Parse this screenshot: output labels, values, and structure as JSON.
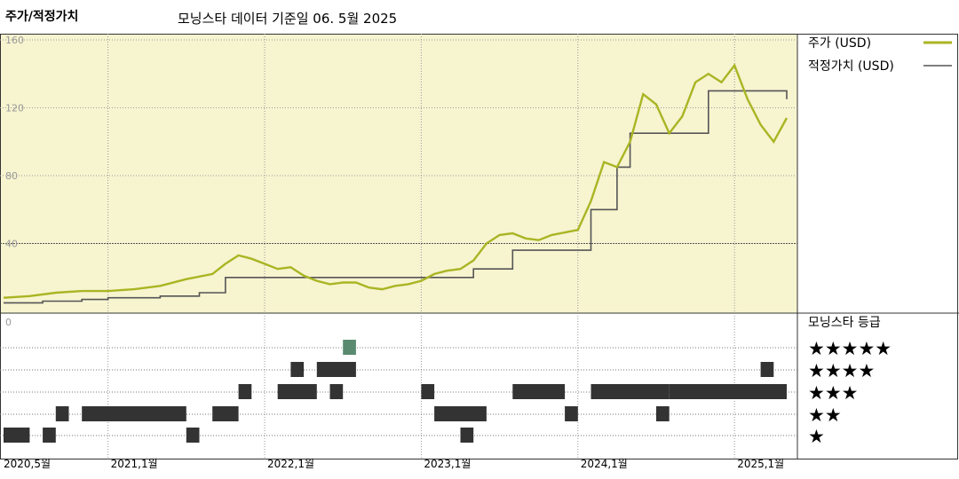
{
  "header": {
    "title": "주가/적정가치",
    "subtitle": "모닝스타 데이터 기준일 06. 5월 2025"
  },
  "legend": {
    "price_label": "주가 (USD)",
    "fair_value_label": "적정가치 (USD)",
    "rating_title": "모닝스타 등급"
  },
  "colors": {
    "price_line": "#a9b523",
    "fair_value_line": "#555555",
    "plot_background": "#f7f4d0",
    "rating_bar": "#333333",
    "rating_highlight": "#5a8a70"
  },
  "chart_data": {
    "type": "line",
    "title": "주가/적정가치",
    "subtitle": "모닝스타 데이터 기준일 06. 5월 2025",
    "ylim": [
      0,
      160
    ],
    "y_ticks": [
      "160",
      "120",
      "80",
      "40",
      "0"
    ],
    "x_ticks": [
      "2020,5월",
      "2021,1월",
      "2022,1월",
      "2023,1월",
      "2024,1월",
      "2025,1월"
    ],
    "x_range": [
      "2020-05",
      "2025-05"
    ],
    "grid": true,
    "series": [
      {
        "name": "주가 (USD)",
        "points": [
          [
            "2020-05",
            8
          ],
          [
            "2020-07",
            9
          ],
          [
            "2020-09",
            11
          ],
          [
            "2020-11",
            12
          ],
          [
            "2021-01",
            12
          ],
          [
            "2021-03",
            13
          ],
          [
            "2021-05",
            15
          ],
          [
            "2021-07",
            19
          ],
          [
            "2021-09",
            22
          ],
          [
            "2021-10",
            28
          ],
          [
            "2021-11",
            33
          ],
          [
            "2021-12",
            31
          ],
          [
            "2022-01",
            28
          ],
          [
            "2022-02",
            25
          ],
          [
            "2022-03",
            26
          ],
          [
            "2022-04",
            21
          ],
          [
            "2022-05",
            18
          ],
          [
            "2022-06",
            16
          ],
          [
            "2022-07",
            17
          ],
          [
            "2022-08",
            17
          ],
          [
            "2022-09",
            14
          ],
          [
            "2022-10",
            13
          ],
          [
            "2022-11",
            15
          ],
          [
            "2022-12",
            16
          ],
          [
            "2023-01",
            18
          ],
          [
            "2023-02",
            22
          ],
          [
            "2023-03",
            24
          ],
          [
            "2023-04",
            25
          ],
          [
            "2023-05",
            30
          ],
          [
            "2023-06",
            40
          ],
          [
            "2023-07",
            45
          ],
          [
            "2023-08",
            46
          ],
          [
            "2023-09",
            43
          ],
          [
            "2023-10",
            42
          ],
          [
            "2023-11",
            45
          ],
          [
            "2024-01",
            48
          ],
          [
            "2024-02",
            65
          ],
          [
            "2024-03",
            88
          ],
          [
            "2024-04",
            85
          ],
          [
            "2024-05",
            100
          ],
          [
            "2024-06",
            128
          ],
          [
            "2024-07",
            122
          ],
          [
            "2024-08",
            105
          ],
          [
            "2024-09",
            115
          ],
          [
            "2024-10",
            135
          ],
          [
            "2024-11",
            140
          ],
          [
            "2024-12",
            135
          ],
          [
            "2025-01",
            145
          ],
          [
            "2025-02",
            125
          ],
          [
            "2025-03",
            110
          ],
          [
            "2025-04",
            100
          ],
          [
            "2025-05",
            114
          ]
        ]
      },
      {
        "name": "적정가치 (USD)",
        "points": [
          [
            "2020-05",
            5
          ],
          [
            "2020-08",
            6
          ],
          [
            "2020-11",
            7
          ],
          [
            "2021-01",
            8
          ],
          [
            "2021-05",
            9
          ],
          [
            "2021-08",
            11
          ],
          [
            "2021-10",
            20
          ],
          [
            "2022-02",
            20
          ],
          [
            "2022-06",
            20
          ],
          [
            "2022-10",
            20
          ],
          [
            "2023-01",
            20
          ],
          [
            "2023-05",
            25
          ],
          [
            "2023-08",
            36
          ],
          [
            "2024-01",
            36
          ],
          [
            "2024-02",
            60
          ],
          [
            "2024-04",
            85
          ],
          [
            "2024-05",
            105
          ],
          [
            "2024-09",
            105
          ],
          [
            "2024-11",
            130
          ],
          [
            "2025-04",
            130
          ],
          [
            "2025-05",
            125
          ]
        ]
      }
    ],
    "ratings": {
      "levels": [
        "★★★★★",
        "★★★★",
        "★★★",
        "★★",
        "★"
      ],
      "periods": [
        {
          "stars": 1,
          "from": "2020-05",
          "to": "2020-07"
        },
        {
          "stars": 1,
          "from": "2020-08",
          "to": "2020-09"
        },
        {
          "stars": 2,
          "from": "2020-09",
          "to": "2020-10"
        },
        {
          "stars": 2,
          "from": "2020-11",
          "to": "2021-07"
        },
        {
          "stars": 1,
          "from": "2021-07",
          "to": "2021-08"
        },
        {
          "stars": 2,
          "from": "2021-09",
          "to": "2021-11"
        },
        {
          "stars": 3,
          "from": "2021-11",
          "to": "2021-12"
        },
        {
          "stars": 3,
          "from": "2022-02",
          "to": "2022-05"
        },
        {
          "stars": 4,
          "from": "2022-03",
          "to": "2022-04"
        },
        {
          "stars": 4,
          "from": "2022-05",
          "to": "2022-08"
        },
        {
          "stars": 5,
          "from": "2022-07",
          "to": "2022-08"
        },
        {
          "stars": 3,
          "from": "2022-06",
          "to": "2022-07"
        },
        {
          "stars": 3,
          "from": "2023-01",
          "to": "2023-02"
        },
        {
          "stars": 2,
          "from": "2023-02",
          "to": "2023-06"
        },
        {
          "stars": 1,
          "from": "2023-04",
          "to": "2023-05"
        },
        {
          "stars": 3,
          "from": "2023-08",
          "to": "2023-12"
        },
        {
          "stars": 2,
          "from": "2023-12",
          "to": "2024-01"
        },
        {
          "stars": 3,
          "from": "2024-02",
          "to": "2024-08"
        },
        {
          "stars": 2,
          "from": "2024-07",
          "to": "2024-08"
        },
        {
          "stars": 3,
          "from": "2024-08",
          "to": "2025-05"
        },
        {
          "stars": 4,
          "from": "2025-03",
          "to": "2025-04"
        }
      ]
    }
  }
}
